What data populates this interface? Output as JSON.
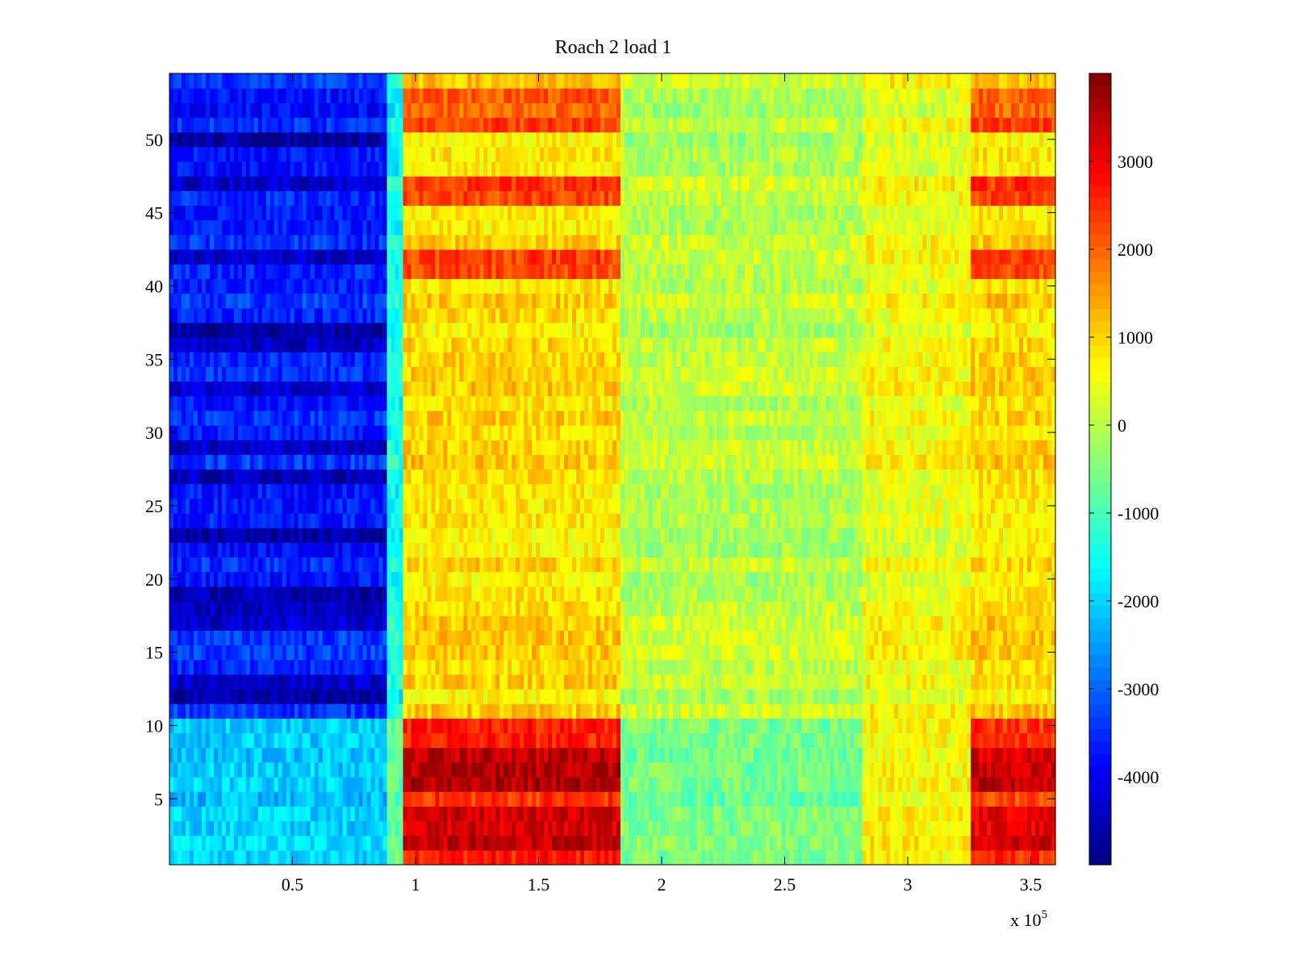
{
  "chart_data": {
    "type": "heatmap",
    "title": "Roach 2 load 1",
    "xlabel": "",
    "ylabel": "",
    "x_exponent_label": "x 10",
    "x_exponent_power": "5",
    "xlim": [
      0,
      360000
    ],
    "ylim": [
      0.5,
      54.5
    ],
    "x_ticks": [
      50000,
      100000,
      150000,
      200000,
      250000,
      300000,
      350000
    ],
    "x_tick_labels": [
      "0.5",
      "1",
      "1.5",
      "2",
      "2.5",
      "3",
      "3.5"
    ],
    "y_ticks": [
      5,
      10,
      15,
      20,
      25,
      30,
      35,
      40,
      45,
      50
    ],
    "y_tick_labels": [
      "5",
      "10",
      "15",
      "20",
      "25",
      "30",
      "35",
      "40",
      "45",
      "50"
    ],
    "colormap": "jet",
    "clim": [
      -5000,
      4000
    ],
    "colorbar_ticks": [
      3000,
      2000,
      1000,
      0,
      -1000,
      -2000,
      -3000,
      -4000
    ],
    "colorbar_tick_labels": [
      "3000",
      "2000",
      "1000",
      "0",
      "-1000",
      "-2000",
      "-3000",
      "-4000"
    ],
    "rows": 54,
    "x_segments": [
      {
        "x_start": 0,
        "x_end": 88000,
        "level_rows_1_10": -2100,
        "level_rows_11_54": -3600
      },
      {
        "x_start": 88000,
        "x_end": 95000,
        "level_rows_1_10": -800,
        "level_rows_11_54": -1500
      },
      {
        "x_start": 95000,
        "x_end": 184000,
        "level_rows_1_10": 2900,
        "level_rows_11_54": 900
      },
      {
        "x_start": 184000,
        "x_end": 282000,
        "level_rows_1_10": -600,
        "level_rows_11_54": 0
      },
      {
        "x_start": 282000,
        "x_end": 325000,
        "level_rows_1_10": 600,
        "level_rows_11_54": 500
      },
      {
        "x_start": 325000,
        "x_end": 360000,
        "level_rows_1_10": 2700,
        "level_rows_11_54": 900
      }
    ],
    "hot_rows_upper": [
      41,
      42,
      46,
      47,
      51,
      52,
      53
    ],
    "dark_rows_left": [
      12,
      13,
      17,
      18,
      19,
      23,
      27,
      29,
      33,
      36,
      37,
      42,
      47,
      50
    ]
  }
}
